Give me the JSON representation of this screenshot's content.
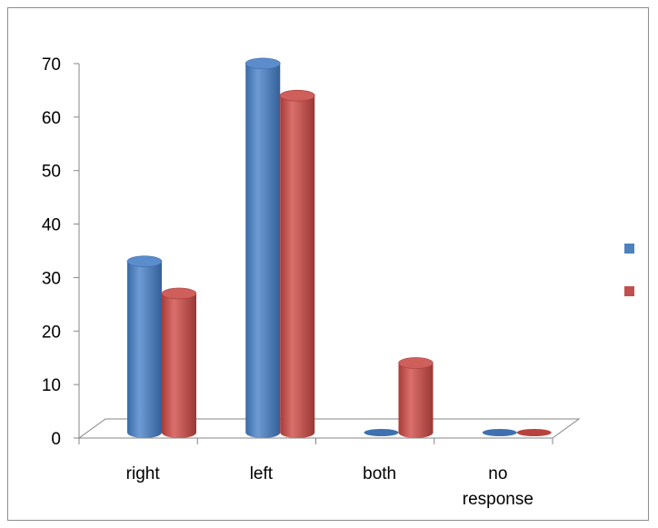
{
  "chart_data": {
    "type": "bar",
    "style": "3d-cylinder",
    "categories": [
      "right",
      "left",
      "both",
      "no response"
    ],
    "category_lines": [
      [
        "right"
      ],
      [
        "left"
      ],
      [
        "both"
      ],
      [
        "no",
        "response"
      ]
    ],
    "series": [
      {
        "values": [
          32,
          69,
          0,
          0
        ],
        "color": "#4f81bd"
      },
      {
        "values": [
          26,
          63,
          13,
          0
        ],
        "color": "#c0504d"
      }
    ],
    "yticks": [
      0,
      10,
      20,
      30,
      40,
      50,
      60,
      70
    ],
    "ylim": [
      0,
      70
    ],
    "grid": false,
    "legend": {
      "position": "right",
      "labels_shown": false
    }
  }
}
